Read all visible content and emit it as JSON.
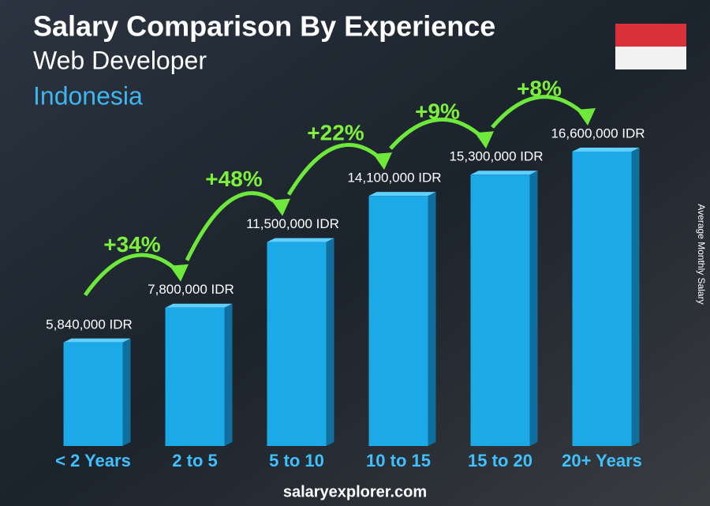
{
  "chart_data": {
    "type": "bar",
    "title": "Salary Comparison By Experience",
    "subtitle": "Web Developer",
    "country": "Indonesia",
    "y_label": "Average Monthly Salary",
    "categories": [
      "< 2 Years",
      "2 to 5",
      "5 to 10",
      "10 to 15",
      "15 to 20",
      "20+ Years"
    ],
    "values": [
      5840000,
      7800000,
      11500000,
      14100000,
      15300000,
      16600000
    ],
    "value_labels": [
      "5,840,000 IDR",
      "7,800,000 IDR",
      "11,500,000 IDR",
      "14,100,000 IDR",
      "15,300,000 IDR",
      "16,600,000 IDR"
    ],
    "changes": [
      "+34%",
      "+48%",
      "+22%",
      "+9%",
      "+8%"
    ],
    "color": "#1ca9e8",
    "footer": "salaryexplorer.com"
  }
}
